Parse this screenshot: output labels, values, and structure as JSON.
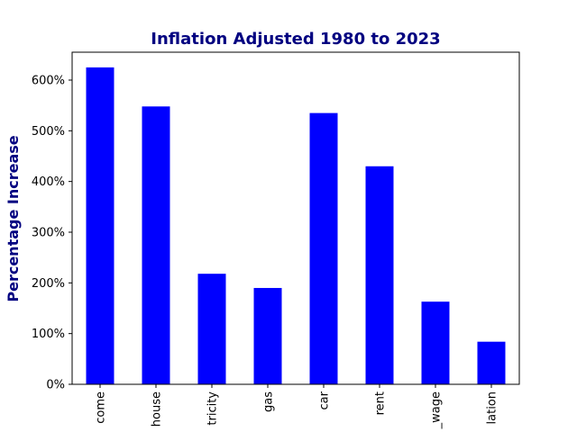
{
  "chart_data": {
    "type": "bar",
    "title": "Inflation Adjusted 1980 to 2023",
    "xlabel": "",
    "ylabel": "Percentage Increase",
    "categories": [
      "income",
      "house",
      "electricity",
      "gas",
      "car",
      "rent",
      "min_wage",
      "inflation"
    ],
    "category_tick_labels": [
      "come",
      "house",
      "tricity",
      "gas",
      "car",
      "rent",
      "_wage",
      "lation"
    ],
    "values": [
      625,
      548,
      218,
      190,
      535,
      430,
      163,
      84
    ],
    "ylim": [
      0,
      655
    ],
    "yticks": [
      0,
      100,
      200,
      300,
      400,
      500,
      600
    ],
    "ytick_labels": [
      "0%",
      "100%",
      "200%",
      "300%",
      "400%",
      "500%",
      "600%"
    ],
    "bar_color": "#0000ff",
    "title_color": "#000080",
    "grid": false
  }
}
